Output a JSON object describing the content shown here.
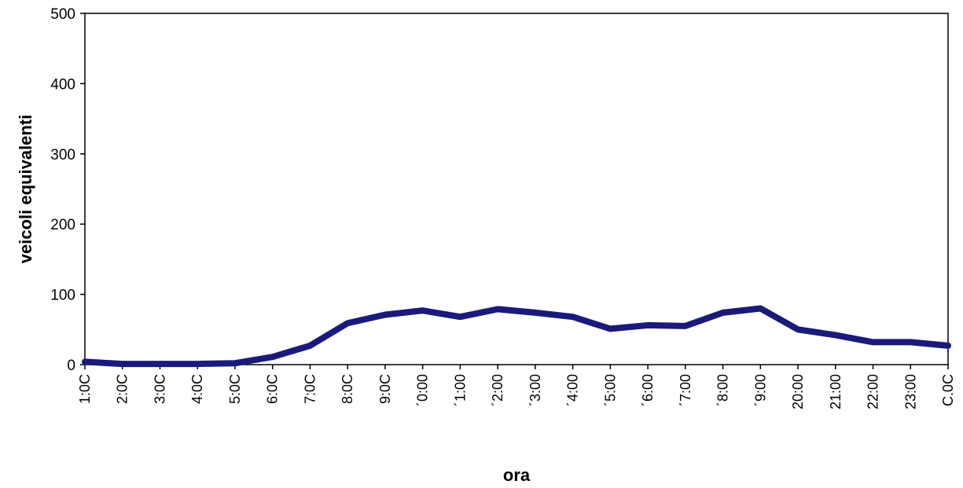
{
  "chart_data": {
    "type": "line",
    "xlabel": "ora",
    "ylabel": "veicoli equivalenti",
    "ylim": [
      0,
      500
    ],
    "yticks": [
      "0",
      "100",
      "200",
      "300",
      "400",
      "500"
    ],
    "categories": [
      "1:0C",
      "2:0C",
      "3:0C",
      "4:0C",
      "5:0C",
      "6:0C",
      "7:0C",
      "8:0C",
      "9:0C",
      "´0:00",
      "´1:00",
      "´2:00",
      "´3:00",
      "´4:00",
      "´5:00",
      "´6:00",
      "´7:00",
      "´8:00",
      "´9:00",
      "20:00",
      "21:00",
      "22:00",
      "23:00",
      "C.0C"
    ],
    "series": [
      {
        "values": [
          4,
          1,
          1,
          1,
          2,
          11,
          27,
          59,
          71,
          77,
          68,
          79,
          74,
          68,
          51,
          56,
          55,
          74,
          80,
          50,
          42,
          32,
          32,
          27
        ],
        "color": "#1a1a7a"
      }
    ],
    "grid": true,
    "gridStyle": "dashed",
    "legend": "none"
  }
}
